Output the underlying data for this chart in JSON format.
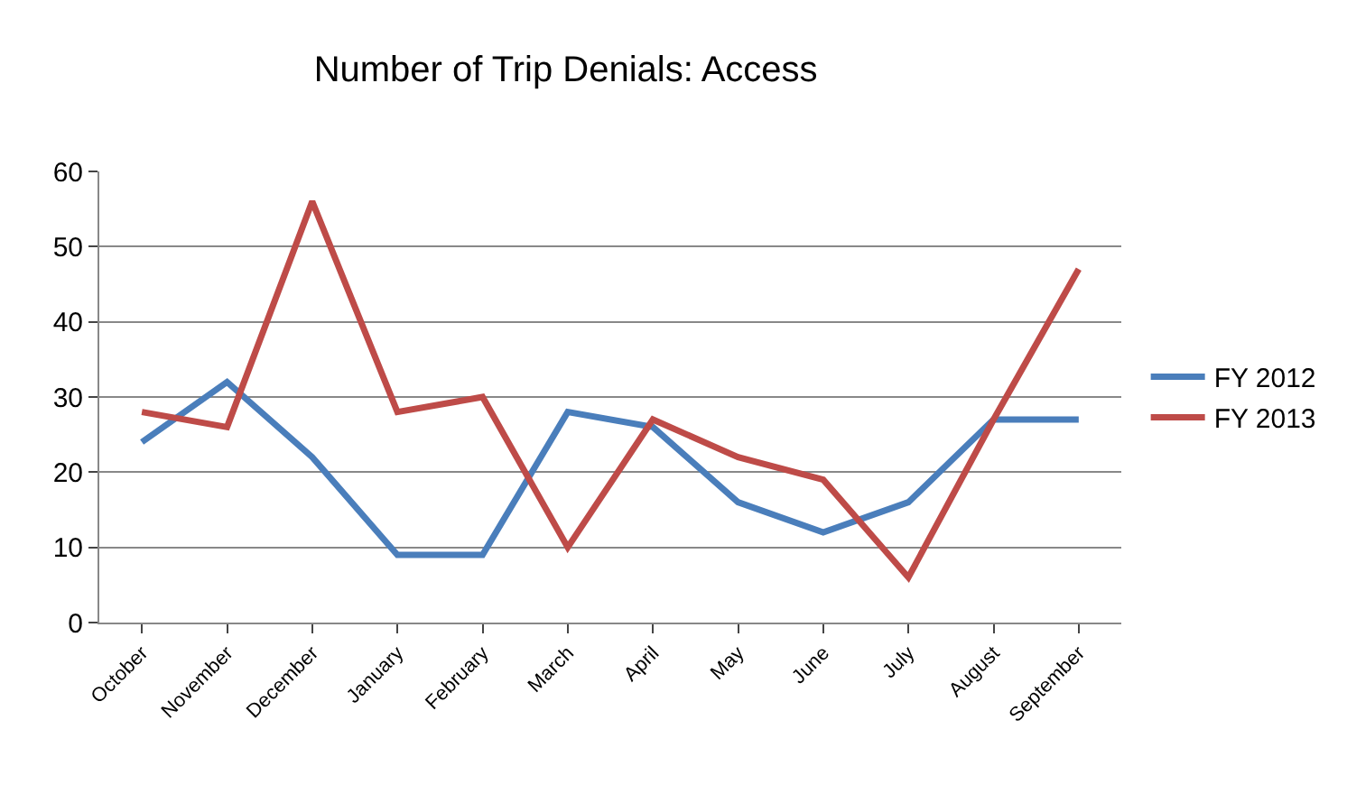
{
  "chart_data": {
    "type": "line",
    "title": "Number of Trip Denials: Access",
    "categories": [
      "October",
      "November",
      "December",
      "January",
      "February",
      "March",
      "April",
      "May",
      "June",
      "July",
      "August",
      "September"
    ],
    "series": [
      {
        "name": "FY 2012",
        "color": "#4a7ebb",
        "values": [
          24,
          32,
          22,
          9,
          9,
          28,
          26,
          16,
          12,
          16,
          27,
          27
        ]
      },
      {
        "name": "FY 2013",
        "color": "#be4b48",
        "values": [
          28,
          26,
          56,
          28,
          30,
          10,
          27,
          22,
          19,
          6,
          27,
          47
        ]
      }
    ],
    "ylim": [
      0,
      60
    ],
    "yticks": [
      0,
      10,
      20,
      30,
      40,
      50,
      60
    ],
    "grid": "y",
    "legend": "right",
    "marker": "none",
    "line_style": "solid"
  }
}
